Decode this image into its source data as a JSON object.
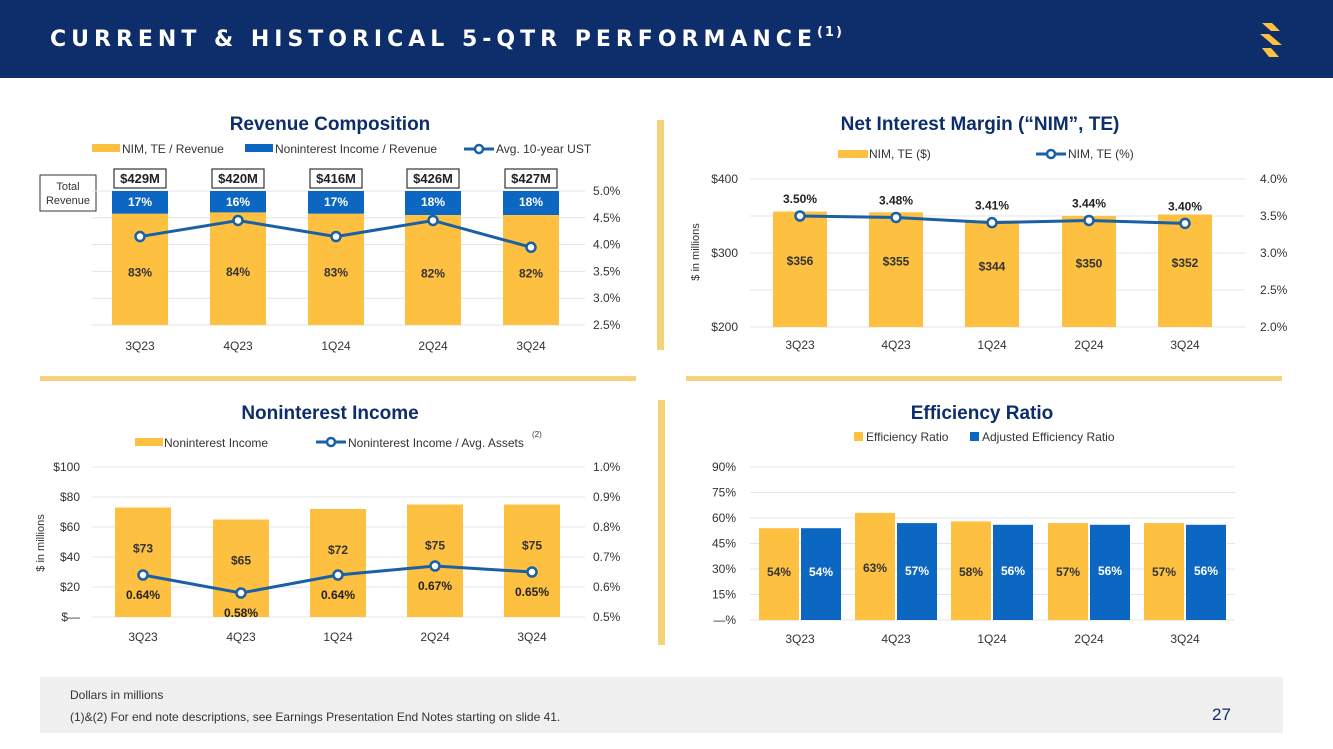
{
  "header": {
    "title": "CURRENT & HISTORICAL 5-QTR PERFORMANCE",
    "title_note": "(1)"
  },
  "colors": {
    "navy": "#0d2d6b",
    "gold": "#fdc040",
    "blue": "#0b67c2",
    "line": "#1a60a5",
    "divider": "#f6d27a"
  },
  "quarters": [
    "3Q23",
    "4Q23",
    "1Q24",
    "2Q24",
    "3Q24"
  ],
  "revenue_chart": {
    "type": "bar",
    "title": "Revenue Composition",
    "legend": [
      "NIM, TE / Revenue",
      "Noninterest Income / Revenue",
      "Avg. 10-year UST"
    ],
    "total_revenue_label": "Total Revenue",
    "totals": [
      "$429M",
      "$420M",
      "$416M",
      "$426M",
      "$427M"
    ],
    "nim_share": [
      83,
      84,
      83,
      82,
      82
    ],
    "nim_share_labels": [
      "83%",
      "84%",
      "83%",
      "82%",
      "82%"
    ],
    "nonint_share": [
      17,
      16,
      17,
      18,
      18
    ],
    "nonint_share_labels": [
      "17%",
      "16%",
      "17%",
      "18%",
      "18%"
    ],
    "ust_values": [
      4.15,
      4.45,
      4.15,
      4.45,
      3.95
    ],
    "right_axis": {
      "min": 2.5,
      "max": 5.0,
      "ticks": [
        "5.0%",
        "4.5%",
        "4.0%",
        "3.5%",
        "3.0%",
        "2.5%"
      ]
    }
  },
  "nim_chart": {
    "type": "bar",
    "title": "Net Interest Margin (“NIM”, TE)",
    "legend": [
      "NIM, TE ($)",
      "NIM, TE (%)"
    ],
    "ylabel": "$ in millions",
    "values": [
      356,
      355,
      344,
      350,
      352
    ],
    "value_labels": [
      "$356",
      "$355",
      "$344",
      "$350",
      "$352"
    ],
    "pct_values": [
      3.5,
      3.48,
      3.41,
      3.44,
      3.4
    ],
    "pct_labels": [
      "3.50%",
      "3.48%",
      "3.41%",
      "3.44%",
      "3.40%"
    ],
    "left_axis": {
      "min": 200,
      "max": 400,
      "ticks": [
        "$400",
        "$300",
        "$200"
      ]
    },
    "right_axis": {
      "min": 2.0,
      "max": 4.0,
      "ticks": [
        "4.0%",
        "3.5%",
        "3.0%",
        "2.5%",
        "2.0%"
      ]
    }
  },
  "nonint_chart": {
    "type": "bar",
    "title": "Noninterest Income",
    "legend": [
      "Noninterest Income",
      "Noninterest Income / Avg. Assets"
    ],
    "legend_note": "(2)",
    "ylabel": "$ in millions",
    "values": [
      73,
      65,
      72,
      75,
      75
    ],
    "value_labels": [
      "$73",
      "$65",
      "$72",
      "$75",
      "$75"
    ],
    "pct_values": [
      0.64,
      0.58,
      0.64,
      0.67,
      0.65
    ],
    "pct_labels": [
      "0.64%",
      "0.58%",
      "0.64%",
      "0.67%",
      "0.65%"
    ],
    "left_axis": {
      "min": 0,
      "max": 100,
      "ticks": [
        "$100",
        "$80",
        "$60",
        "$40",
        "$20",
        "$—"
      ]
    },
    "right_axis": {
      "min": 0.5,
      "max": 1.0,
      "ticks": [
        "1.0%",
        "0.9%",
        "0.8%",
        "0.7%",
        "0.6%",
        "0.5%"
      ]
    }
  },
  "efficiency_chart": {
    "type": "bar",
    "title": "Efficiency Ratio",
    "legend": [
      "Efficiency Ratio",
      "Adjusted Efficiency Ratio"
    ],
    "series": [
      {
        "name": "Efficiency Ratio",
        "values": [
          54,
          63,
          58,
          57,
          57
        ],
        "labels": [
          "54%",
          "63%",
          "58%",
          "57%",
          "57%"
        ]
      },
      {
        "name": "Adjusted Efficiency Ratio",
        "values": [
          54,
          57,
          56,
          56,
          56
        ],
        "labels": [
          "54%",
          "57%",
          "56%",
          "56%",
          "56%"
        ]
      }
    ],
    "left_axis": {
      "min": 0,
      "max": 90,
      "ticks": [
        "90%",
        "75%",
        "60%",
        "45%",
        "30%",
        "15%",
        "—%"
      ]
    }
  },
  "chart_data": [
    {
      "type": "bar",
      "title": "Revenue Composition",
      "categories": [
        "3Q23",
        "4Q23",
        "1Q24",
        "2Q24",
        "3Q24"
      ],
      "series": [
        {
          "name": "NIM, TE / Revenue",
          "values": [
            83,
            84,
            83,
            82,
            82
          ]
        },
        {
          "name": "Noninterest Income / Revenue",
          "values": [
            17,
            16,
            17,
            18,
            18
          ]
        },
        {
          "name": "Avg. 10-year UST",
          "values": [
            4.15,
            4.45,
            4.15,
            4.45,
            3.95
          ]
        }
      ],
      "totals": [
        "$429M",
        "$420M",
        "$416M",
        "$426M",
        "$427M"
      ],
      "ylim_right": [
        2.5,
        5.0
      ]
    },
    {
      "type": "bar",
      "title": "Net Interest Margin (“NIM”, TE)",
      "categories": [
        "3Q23",
        "4Q23",
        "1Q24",
        "2Q24",
        "3Q24"
      ],
      "series": [
        {
          "name": "NIM, TE ($)",
          "values": [
            356,
            355,
            344,
            350,
            352
          ]
        },
        {
          "name": "NIM, TE (%)",
          "values": [
            3.5,
            3.48,
            3.41,
            3.44,
            3.4
          ]
        }
      ],
      "ylabel": "$ in millions",
      "ylim": [
        200,
        400
      ],
      "ylim_right": [
        2.0,
        4.0
      ]
    },
    {
      "type": "bar",
      "title": "Noninterest Income",
      "categories": [
        "3Q23",
        "4Q23",
        "1Q24",
        "2Q24",
        "3Q24"
      ],
      "series": [
        {
          "name": "Noninterest Income",
          "values": [
            73,
            65,
            72,
            75,
            75
          ]
        },
        {
          "name": "Noninterest Income / Avg. Assets",
          "values": [
            0.64,
            0.58,
            0.64,
            0.67,
            0.65
          ]
        }
      ],
      "ylabel": "$ in millions",
      "ylim": [
        0,
        100
      ],
      "ylim_right": [
        0.5,
        1.0
      ]
    },
    {
      "type": "bar",
      "title": "Efficiency Ratio",
      "categories": [
        "3Q23",
        "4Q23",
        "1Q24",
        "2Q24",
        "3Q24"
      ],
      "series": [
        {
          "name": "Efficiency Ratio",
          "values": [
            54,
            63,
            58,
            57,
            57
          ]
        },
        {
          "name": "Adjusted Efficiency Ratio",
          "values": [
            54,
            57,
            56,
            56,
            56
          ]
        }
      ],
      "ylim": [
        0,
        90
      ]
    }
  ],
  "footer": {
    "note1": "Dollars in millions",
    "note2": "(1)&(2)  For end note descriptions, see Earnings Presentation End Notes starting on slide 41.",
    "page_number": "27"
  }
}
